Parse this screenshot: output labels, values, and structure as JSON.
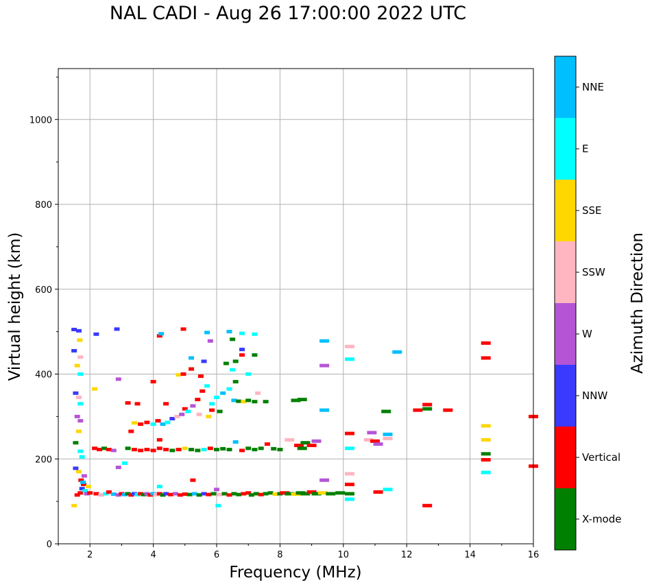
{
  "chart_data": {
    "type": "scatter",
    "title": "NAL CADI - Aug 26 17:00:00 2022 UTC",
    "xlabel": "Frequency (MHz)",
    "ylabel": "Virtual height (km)",
    "xlim": [
      1,
      16
    ],
    "ylim": [
      0,
      1120
    ],
    "xticks": [
      "2",
      "4",
      "6",
      "8",
      "10",
      "12",
      "14",
      "16"
    ],
    "yticks": [
      "0",
      "200",
      "400",
      "600",
      "800",
      "1000"
    ],
    "grid": true,
    "colorbar": {
      "label": "Azimuth Direction",
      "categories": [
        {
          "name": "X-mode",
          "color": "#008000"
        },
        {
          "name": "Vertical",
          "color": "#ff0000"
        },
        {
          "name": "NNW",
          "color": "#3a3aff"
        },
        {
          "name": "W",
          "color": "#b455d6"
        },
        {
          "name": "SSW",
          "color": "#ffb6c1"
        },
        {
          "name": "SSE",
          "color": "#ffd700"
        },
        {
          "name": "E",
          "color": "#00ffff"
        },
        {
          "name": "NNE",
          "color": "#00bfff"
        }
      ]
    },
    "points": [
      {
        "f": 1.7,
        "h": 120,
        "c": 1
      },
      {
        "f": 1.75,
        "h": 130,
        "c": 2
      },
      {
        "f": 1.8,
        "h": 140,
        "c": 1
      },
      {
        "f": 1.85,
        "h": 125,
        "c": 6
      },
      {
        "f": 1.9,
        "h": 118,
        "c": 3
      },
      {
        "f": 1.95,
        "h": 135,
        "c": 5
      },
      {
        "f": 2.0,
        "h": 120,
        "c": 1
      },
      {
        "f": 1.6,
        "h": 115,
        "c": 1
      },
      {
        "f": 1.72,
        "h": 150,
        "c": 1
      },
      {
        "f": 1.82,
        "h": 160,
        "c": 3
      },
      {
        "f": 1.65,
        "h": 170,
        "c": 5
      },
      {
        "f": 1.55,
        "h": 178,
        "c": 2
      },
      {
        "f": 1.5,
        "h": 90,
        "c": 5
      },
      {
        "f": 1.78,
        "h": 145,
        "c": 7
      },
      {
        "f": 2.2,
        "h": 118,
        "c": 1
      },
      {
        "f": 2.35,
        "h": 115,
        "c": 4
      },
      {
        "f": 2.5,
        "h": 118,
        "c": 6
      },
      {
        "f": 2.6,
        "h": 122,
        "c": 1
      },
      {
        "f": 2.75,
        "h": 117,
        "c": 7
      },
      {
        "f": 2.9,
        "h": 115,
        "c": 3
      },
      {
        "f": 3.0,
        "h": 118,
        "c": 1
      },
      {
        "f": 3.1,
        "h": 116,
        "c": 7
      },
      {
        "f": 3.2,
        "h": 118,
        "c": 0
      },
      {
        "f": 3.3,
        "h": 115,
        "c": 1
      },
      {
        "f": 3.4,
        "h": 118,
        "c": 2
      },
      {
        "f": 3.5,
        "h": 116,
        "c": 6
      },
      {
        "f": 3.6,
        "h": 118,
        "c": 1
      },
      {
        "f": 3.7,
        "h": 116,
        "c": 0
      },
      {
        "f": 3.8,
        "h": 118,
        "c": 3
      },
      {
        "f": 3.9,
        "h": 115,
        "c": 1
      },
      {
        "f": 4.0,
        "h": 118,
        "c": 7
      },
      {
        "f": 4.1,
        "h": 116,
        "c": 4
      },
      {
        "f": 4.2,
        "h": 118,
        "c": 1
      },
      {
        "f": 4.3,
        "h": 115,
        "c": 0
      },
      {
        "f": 4.4,
        "h": 118,
        "c": 2
      },
      {
        "f": 4.55,
        "h": 116,
        "c": 1
      },
      {
        "f": 4.7,
        "h": 118,
        "c": 3
      },
      {
        "f": 4.85,
        "h": 115,
        "c": 1
      },
      {
        "f": 5.0,
        "h": 117,
        "c": 1
      },
      {
        "f": 5.15,
        "h": 116,
        "c": 0
      },
      {
        "f": 5.3,
        "h": 118,
        "c": 7
      },
      {
        "f": 5.45,
        "h": 115,
        "c": 0
      },
      {
        "f": 5.6,
        "h": 118,
        "c": 2
      },
      {
        "f": 5.75,
        "h": 116,
        "c": 1
      },
      {
        "f": 5.9,
        "h": 118,
        "c": 0
      },
      {
        "f": 6.0,
        "h": 128,
        "c": 3
      },
      {
        "f": 6.1,
        "h": 116,
        "c": 4
      },
      {
        "f": 6.25,
        "h": 118,
        "c": 0
      },
      {
        "f": 6.4,
        "h": 115,
        "c": 1
      },
      {
        "f": 6.55,
        "h": 118,
        "c": 0
      },
      {
        "f": 6.7,
        "h": 116,
        "c": 0
      },
      {
        "f": 6.85,
        "h": 118,
        "c": 1
      },
      {
        "f": 7.0,
        "h": 120,
        "c": 1
      },
      {
        "f": 7.1,
        "h": 115,
        "c": 0
      },
      {
        "f": 7.25,
        "h": 118,
        "c": 0
      },
      {
        "f": 7.4,
        "h": 116,
        "c": 1
      },
      {
        "f": 7.55,
        "h": 118,
        "c": 0
      },
      {
        "f": 7.7,
        "h": 120,
        "c": 0
      },
      {
        "f": 7.85,
        "h": 117,
        "c": 5
      },
      {
        "f": 8.0,
        "h": 118,
        "c": 0
      },
      {
        "f": 8.15,
        "h": 120,
        "c": 1
      },
      {
        "f": 8.3,
        "h": 118,
        "c": 0
      },
      {
        "f": 8.5,
        "h": 117,
        "c": 5
      },
      {
        "f": 8.65,
        "h": 120,
        "c": 0
      },
      {
        "f": 8.8,
        "h": 118,
        "c": 0
      },
      {
        "f": 9.0,
        "h": 122,
        "c": 1
      },
      {
        "f": 9.15,
        "h": 118,
        "c": 0
      },
      {
        "f": 9.35,
        "h": 120,
        "c": 5
      },
      {
        "f": 9.6,
        "h": 118,
        "c": 0
      },
      {
        "f": 9.9,
        "h": 120,
        "c": 0
      },
      {
        "f": 10.2,
        "h": 118,
        "c": 0
      },
      {
        "f": 10.2,
        "h": 105,
        "c": 6
      },
      {
        "f": 11.1,
        "h": 122,
        "c": 1
      },
      {
        "f": 11.4,
        "h": 128,
        "c": 6
      },
      {
        "f": 12.65,
        "h": 90,
        "c": 1
      },
      {
        "f": 6.05,
        "h": 90,
        "c": 6
      },
      {
        "f": 5.25,
        "h": 150,
        "c": 1
      },
      {
        "f": 4.2,
        "h": 135,
        "c": 6
      },
      {
        "f": 2.15,
        "h": 225,
        "c": 1
      },
      {
        "f": 2.3,
        "h": 222,
        "c": 1
      },
      {
        "f": 2.45,
        "h": 225,
        "c": 0
      },
      {
        "f": 2.6,
        "h": 222,
        "c": 1
      },
      {
        "f": 2.75,
        "h": 220,
        "c": 3
      },
      {
        "f": 3.2,
        "h": 225,
        "c": 0
      },
      {
        "f": 3.4,
        "h": 222,
        "c": 1
      },
      {
        "f": 3.6,
        "h": 220,
        "c": 1
      },
      {
        "f": 3.8,
        "h": 222,
        "c": 1
      },
      {
        "f": 4.0,
        "h": 220,
        "c": 1
      },
      {
        "f": 4.2,
        "h": 225,
        "c": 1
      },
      {
        "f": 4.4,
        "h": 222,
        "c": 1
      },
      {
        "f": 4.6,
        "h": 220,
        "c": 0
      },
      {
        "f": 4.8,
        "h": 222,
        "c": 1
      },
      {
        "f": 5.0,
        "h": 225,
        "c": 5
      },
      {
        "f": 5.2,
        "h": 222,
        "c": 0
      },
      {
        "f": 5.4,
        "h": 220,
        "c": 0
      },
      {
        "f": 5.6,
        "h": 222,
        "c": 6
      },
      {
        "f": 5.8,
        "h": 225,
        "c": 1
      },
      {
        "f": 6.0,
        "h": 222,
        "c": 0
      },
      {
        "f": 6.2,
        "h": 224,
        "c": 0
      },
      {
        "f": 6.4,
        "h": 222,
        "c": 0
      },
      {
        "f": 6.6,
        "h": 240,
        "c": 7
      },
      {
        "f": 6.8,
        "h": 220,
        "c": 1
      },
      {
        "f": 7.0,
        "h": 225,
        "c": 0
      },
      {
        "f": 7.2,
        "h": 222,
        "c": 0
      },
      {
        "f": 7.4,
        "h": 225,
        "c": 0
      },
      {
        "f": 7.6,
        "h": 235,
        "c": 1
      },
      {
        "f": 7.8,
        "h": 224,
        "c": 0
      },
      {
        "f": 8.0,
        "h": 222,
        "c": 0
      },
      {
        "f": 8.3,
        "h": 245,
        "c": 4
      },
      {
        "f": 8.6,
        "h": 232,
        "c": 1
      },
      {
        "f": 8.8,
        "h": 238,
        "c": 0
      },
      {
        "f": 9.0,
        "h": 232,
        "c": 1
      },
      {
        "f": 9.15,
        "h": 242,
        "c": 3
      },
      {
        "f": 8.7,
        "h": 225,
        "c": 0
      },
      {
        "f": 10.2,
        "h": 225,
        "c": 6
      },
      {
        "f": 10.2,
        "h": 260,
        "c": 1
      },
      {
        "f": 10.8,
        "h": 245,
        "c": 4
      },
      {
        "f": 11.0,
        "h": 242,
        "c": 1
      },
      {
        "f": 11.4,
        "h": 248,
        "c": 4
      },
      {
        "f": 10.9,
        "h": 262,
        "c": 3
      },
      {
        "f": 11.1,
        "h": 235,
        "c": 3
      },
      {
        "f": 11.4,
        "h": 258,
        "c": 7
      },
      {
        "f": 3.4,
        "h": 285,
        "c": 5
      },
      {
        "f": 3.6,
        "h": 282,
        "c": 1
      },
      {
        "f": 3.8,
        "h": 286,
        "c": 1
      },
      {
        "f": 4.0,
        "h": 282,
        "c": 6
      },
      {
        "f": 4.15,
        "h": 290,
        "c": 1
      },
      {
        "f": 4.3,
        "h": 282,
        "c": 7
      },
      {
        "f": 4.45,
        "h": 286,
        "c": 6
      },
      {
        "f": 4.6,
        "h": 295,
        "c": 2
      },
      {
        "f": 4.75,
        "h": 300,
        "c": 4
      },
      {
        "f": 4.9,
        "h": 305,
        "c": 3
      },
      {
        "f": 5.0,
        "h": 318,
        "c": 1
      },
      {
        "f": 5.1,
        "h": 312,
        "c": 6
      },
      {
        "f": 5.25,
        "h": 325,
        "c": 3
      },
      {
        "f": 5.4,
        "h": 340,
        "c": 1
      },
      {
        "f": 5.55,
        "h": 360,
        "c": 1
      },
      {
        "f": 5.7,
        "h": 372,
        "c": 6
      },
      {
        "f": 5.85,
        "h": 330,
        "c": 6
      },
      {
        "f": 6.0,
        "h": 345,
        "c": 6
      },
      {
        "f": 6.2,
        "h": 355,
        "c": 7
      },
      {
        "f": 6.4,
        "h": 365,
        "c": 6
      },
      {
        "f": 6.55,
        "h": 338,
        "c": 7
      },
      {
        "f": 6.7,
        "h": 336,
        "c": 0
      },
      {
        "f": 6.85,
        "h": 335,
        "c": 5
      },
      {
        "f": 7.0,
        "h": 338,
        "c": 0
      },
      {
        "f": 7.2,
        "h": 335,
        "c": 0
      },
      {
        "f": 7.55,
        "h": 335,
        "c": 0
      },
      {
        "f": 8.5,
        "h": 338,
        "c": 0
      },
      {
        "f": 8.7,
        "h": 340,
        "c": 0
      },
      {
        "f": 6.1,
        "h": 312,
        "c": 0
      },
      {
        "f": 5.85,
        "h": 315,
        "c": 1
      },
      {
        "f": 5.45,
        "h": 305,
        "c": 4
      },
      {
        "f": 5.75,
        "h": 300,
        "c": 5
      },
      {
        "f": 9.4,
        "h": 315,
        "c": 7
      },
      {
        "f": 11.35,
        "h": 312,
        "c": 0
      },
      {
        "f": 12.35,
        "h": 315,
        "c": 1
      },
      {
        "f": 12.65,
        "h": 318,
        "c": 0
      },
      {
        "f": 12.65,
        "h": 328,
        "c": 1
      },
      {
        "f": 13.3,
        "h": 315,
        "c": 1
      },
      {
        "f": 16.0,
        "h": 300,
        "c": 1
      },
      {
        "f": 4.8,
        "h": 398,
        "c": 5
      },
      {
        "f": 4.95,
        "h": 400,
        "c": 1
      },
      {
        "f": 5.2,
        "h": 412,
        "c": 1
      },
      {
        "f": 5.5,
        "h": 395,
        "c": 1
      },
      {
        "f": 5.6,
        "h": 430,
        "c": 2
      },
      {
        "f": 5.2,
        "h": 438,
        "c": 7
      },
      {
        "f": 6.3,
        "h": 425,
        "c": 0
      },
      {
        "f": 6.5,
        "h": 410,
        "c": 6
      },
      {
        "f": 6.6,
        "h": 430,
        "c": 0
      },
      {
        "f": 6.6,
        "h": 382,
        "c": 0
      },
      {
        "f": 6.8,
        "h": 445,
        "c": 1
      },
      {
        "f": 7.0,
        "h": 400,
        "c": 6
      },
      {
        "f": 7.2,
        "h": 445,
        "c": 0
      },
      {
        "f": 6.8,
        "h": 458,
        "c": 2
      },
      {
        "f": 6.5,
        "h": 482,
        "c": 0
      },
      {
        "f": 7.3,
        "h": 355,
        "c": 4
      },
      {
        "f": 4.0,
        "h": 382,
        "c": 1
      },
      {
        "f": 4.4,
        "h": 330,
        "c": 1
      },
      {
        "f": 3.2,
        "h": 332,
        "c": 1
      },
      {
        "f": 3.5,
        "h": 330,
        "c": 1
      },
      {
        "f": 2.9,
        "h": 388,
        "c": 3
      },
      {
        "f": 3.3,
        "h": 265,
        "c": 1
      },
      {
        "f": 4.2,
        "h": 245,
        "c": 1
      },
      {
        "f": 2.9,
        "h": 180,
        "c": 3
      },
      {
        "f": 3.1,
        "h": 190,
        "c": 6
      },
      {
        "f": 4.2,
        "h": 490,
        "c": 1
      },
      {
        "f": 4.25,
        "h": 495,
        "c": 7
      },
      {
        "f": 4.95,
        "h": 506,
        "c": 1
      },
      {
        "f": 5.7,
        "h": 498,
        "c": 7
      },
      {
        "f": 5.8,
        "h": 478,
        "c": 3
      },
      {
        "f": 6.4,
        "h": 500,
        "c": 7
      },
      {
        "f": 6.8,
        "h": 496,
        "c": 6
      },
      {
        "f": 7.2,
        "h": 494,
        "c": 6
      },
      {
        "f": 2.85,
        "h": 506,
        "c": 2
      },
      {
        "f": 2.2,
        "h": 494,
        "c": 2
      },
      {
        "f": 2.15,
        "h": 365,
        "c": 5
      },
      {
        "f": 9.4,
        "h": 478,
        "c": 7
      },
      {
        "f": 10.2,
        "h": 465,
        "c": 4
      },
      {
        "f": 10.2,
        "h": 435,
        "c": 6
      },
      {
        "f": 9.4,
        "h": 420,
        "c": 3
      },
      {
        "f": 11.7,
        "h": 452,
        "c": 7
      },
      {
        "f": 10.2,
        "h": 140,
        "c": 1
      },
      {
        "f": 10.2,
        "h": 165,
        "c": 4
      },
      {
        "f": 9.4,
        "h": 150,
        "c": 3
      },
      {
        "f": 14.5,
        "h": 473,
        "c": 1
      },
      {
        "f": 14.5,
        "h": 438,
        "c": 1
      },
      {
        "f": 14.5,
        "h": 278,
        "c": 5
      },
      {
        "f": 14.5,
        "h": 245,
        "c": 5
      },
      {
        "f": 14.5,
        "h": 212,
        "c": 0
      },
      {
        "f": 14.5,
        "h": 198,
        "c": 1
      },
      {
        "f": 14.5,
        "h": 168,
        "c": 6
      },
      {
        "f": 16.0,
        "h": 183,
        "c": 1
      },
      {
        "f": 1.5,
        "h": 505,
        "c": 2
      },
      {
        "f": 1.65,
        "h": 502,
        "c": 2
      },
      {
        "f": 1.68,
        "h": 480,
        "c": 5
      },
      {
        "f": 1.5,
        "h": 455,
        "c": 2
      },
      {
        "f": 1.7,
        "h": 440,
        "c": 4
      },
      {
        "f": 1.6,
        "h": 420,
        "c": 5
      },
      {
        "f": 1.7,
        "h": 400,
        "c": 6
      },
      {
        "f": 1.55,
        "h": 355,
        "c": 2
      },
      {
        "f": 1.65,
        "h": 345,
        "c": 4
      },
      {
        "f": 1.7,
        "h": 330,
        "c": 6
      },
      {
        "f": 1.6,
        "h": 300,
        "c": 3
      },
      {
        "f": 1.7,
        "h": 290,
        "c": 3
      },
      {
        "f": 1.65,
        "h": 265,
        "c": 5
      },
      {
        "f": 1.55,
        "h": 238,
        "c": 0
      },
      {
        "f": 1.7,
        "h": 218,
        "c": 6
      },
      {
        "f": 1.75,
        "h": 205,
        "c": 6
      }
    ]
  }
}
